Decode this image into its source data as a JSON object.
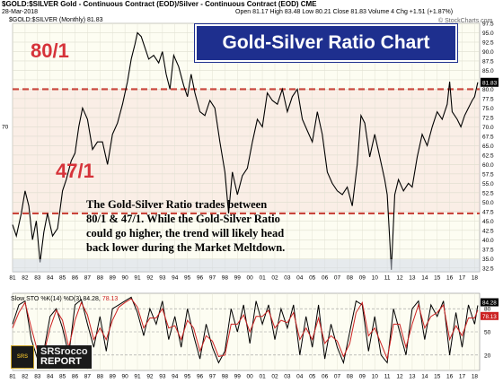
{
  "header": {
    "symbol_line": "$GOLD:$SILVER Gold - Continuous Contract (EOD)/Silver - Continuous Contract (EOD) CME",
    "date": "28-Mar-2018",
    "stats": "Open 81.17 High 83.48 Low 80.21 Close 81.83 Volume 4 Chg +1.51 (+1.87%)",
    "watermark": "© StockCharts.com",
    "legend": "$GOLD:$SILVER (Monthly) 81.83",
    "sto_legend": "Slow STO %K(14) %D(3) 84.28,",
    "sto_legend_d": "78.13"
  },
  "title": "Gold-Silver Ratio Chart",
  "annotations": {
    "upper": "80/1",
    "lower": "47/1",
    "note_lines": [
      "The Gold-Silver Ratio trades between",
      "80/1 & 47/1.  While the Gold-Silver Ratio",
      "could go higher, the trend will likely head",
      "back lower during the Market Meltdown."
    ]
  },
  "logo": {
    "icon": "SRSrocco-icon",
    "line1": "SRSrocco",
    "line2": "REPORT",
    "badge": "SRS"
  },
  "colors": {
    "ratio_line": "#000000",
    "reference_line": "#c9453b",
    "band": "#f4d2d2",
    "sto_k": "#000000",
    "sto_d": "#cc2222",
    "title_bg": "#1e2f8e",
    "plot_bg": "#fdfdf2"
  },
  "chart_data": [
    {
      "type": "line",
      "series": [
        {
          "name": "$GOLD:$SILVER (Monthly)",
          "x": [
            1981.0,
            1981.3,
            1981.7,
            1982.0,
            1982.3,
            1982.6,
            1982.9,
            1983.2,
            1983.5,
            1983.8,
            1984.2,
            1984.6,
            1985.0,
            1985.3,
            1985.7,
            1986.0,
            1986.3,
            1986.6,
            1987.0,
            1987.4,
            1987.8,
            1988.2,
            1988.6,
            1989.0,
            1989.4,
            1989.8,
            1990.2,
            1990.5,
            1990.8,
            1991.0,
            1991.3,
            1991.6,
            1991.9,
            1992.3,
            1992.7,
            1993.0,
            1993.3,
            1993.6,
            1993.9,
            1994.3,
            1994.7,
            1995.0,
            1995.3,
            1995.6,
            1996.0,
            1996.4,
            1996.8,
            1997.2,
            1997.6,
            1998.0,
            1998.3,
            1998.6,
            1999.0,
            1999.4,
            1999.8,
            2000.2,
            2000.6,
            2001.0,
            2001.4,
            2001.8,
            2002.2,
            2002.6,
            2003.0,
            2003.4,
            2003.8,
            2004.2,
            2004.6,
            2005.0,
            2005.4,
            2005.8,
            2006.2,
            2006.6,
            2007.0,
            2007.4,
            2007.8,
            2008.2,
            2008.6,
            2008.9,
            2009.2,
            2009.6,
            2010.0,
            2010.4,
            2010.8,
            2011.0,
            2011.2,
            2011.33,
            2011.6,
            2011.9,
            2012.3,
            2012.7,
            2013.0,
            2013.4,
            2013.8,
            2014.2,
            2014.6,
            2015.0,
            2015.4,
            2015.8,
            2016.0,
            2016.2,
            2016.6,
            2016.9,
            2017.2,
            2017.5,
            2017.8,
            2018.0,
            2018.25
          ],
          "values": [
            44,
            41,
            47,
            53,
            49,
            40,
            45,
            34,
            42,
            47,
            41,
            43,
            53,
            56,
            61,
            63,
            70,
            75,
            72,
            64,
            66,
            66,
            60,
            68,
            71,
            76,
            82,
            88,
            92,
            95,
            94,
            91,
            88,
            89,
            87,
            90,
            84,
            80,
            89,
            86,
            81,
            78,
            84,
            79,
            74,
            73,
            77,
            75,
            66,
            58,
            47,
            58,
            52,
            57,
            59,
            66,
            72,
            70,
            79,
            77,
            76,
            80,
            74,
            78,
            80,
            72,
            69,
            66,
            74,
            68,
            58,
            55,
            53,
            52,
            54,
            49,
            60,
            73,
            71,
            62,
            68,
            62,
            56,
            52,
            40,
            32,
            52,
            56,
            53,
            55,
            54,
            62,
            68,
            65,
            70,
            74,
            72,
            76,
            82,
            74,
            72,
            70,
            73,
            75,
            77,
            78,
            81.83
          ]
        }
      ],
      "xlim": [
        1981,
        2018.4
      ],
      "ylim": [
        31.5,
        97.5
      ],
      "x_ticks": [
        "81",
        "82",
        "83",
        "84",
        "85",
        "86",
        "87",
        "88",
        "89",
        "90",
        "91",
        "92",
        "93",
        "94",
        "95",
        "96",
        "97",
        "98",
        "99",
        "00",
        "01",
        "02",
        "03",
        "04",
        "05",
        "06",
        "07",
        "08",
        "09",
        "10",
        "11",
        "12",
        "13",
        "14",
        "15",
        "16",
        "17",
        "18"
      ],
      "y_ticks": [
        "32.5",
        "35.0",
        "37.5",
        "40.0",
        "42.5",
        "45.0",
        "47.5",
        "50.0",
        "52.5",
        "55.0",
        "57.5",
        "60.0",
        "62.5",
        "65.0",
        "67.5",
        "70.0",
        "72.5",
        "75.0",
        "77.5",
        "80.0",
        "82.5",
        "85.0",
        "87.5",
        "90.0",
        "92.5",
        "95.0",
        "97.5"
      ],
      "left_tick": "70",
      "last_value_label": "81.83",
      "reference_lines": [
        80,
        47
      ],
      "grid": true
    },
    {
      "type": "line",
      "series": [
        {
          "name": "%K",
          "x": [
            1981.0,
            1981.5,
            1982.0,
            1982.5,
            1983.0,
            1983.5,
            1984.0,
            1984.5,
            1985.0,
            1985.5,
            1986.0,
            1986.5,
            1987.0,
            1987.5,
            1988.0,
            1988.5,
            1989.0,
            1989.5,
            1990.0,
            1990.5,
            1991.0,
            1991.5,
            1992.0,
            1992.5,
            1993.0,
            1993.5,
            1994.0,
            1994.5,
            1995.0,
            1995.5,
            1996.0,
            1996.5,
            1997.0,
            1997.5,
            1998.0,
            1998.5,
            1999.0,
            1999.5,
            2000.0,
            2000.5,
            2001.0,
            2001.5,
            2002.0,
            2002.5,
            2003.0,
            2003.5,
            2004.0,
            2004.5,
            2005.0,
            2005.5,
            2006.0,
            2006.5,
            2007.0,
            2007.5,
            2008.0,
            2008.5,
            2009.0,
            2009.5,
            2010.0,
            2010.5,
            2011.0,
            2011.5,
            2012.0,
            2012.5,
            2013.0,
            2013.5,
            2014.0,
            2014.5,
            2015.0,
            2015.5,
            2016.0,
            2016.5,
            2017.0,
            2017.5,
            2018.0,
            2018.25
          ],
          "values": [
            60,
            85,
            90,
            40,
            15,
            25,
            70,
            80,
            55,
            20,
            85,
            92,
            60,
            30,
            70,
            25,
            80,
            85,
            90,
            95,
            75,
            45,
            80,
            60,
            90,
            40,
            70,
            30,
            80,
            45,
            15,
            60,
            30,
            10,
            25,
            80,
            50,
            85,
            35,
            90,
            60,
            85,
            40,
            80,
            55,
            85,
            20,
            70,
            30,
            85,
            15,
            60,
            30,
            10,
            50,
            90,
            85,
            25,
            70,
            20,
            10,
            80,
            50,
            20,
            80,
            90,
            40,
            85,
            70,
            90,
            20,
            75,
            30,
            85,
            60,
            84.28
          ]
        },
        {
          "name": "%D",
          "x": [
            1981.0,
            1981.5,
            1982.0,
            1982.5,
            1983.0,
            1983.5,
            1984.0,
            1984.5,
            1985.0,
            1985.5,
            1986.0,
            1986.5,
            1987.0,
            1987.5,
            1988.0,
            1988.5,
            1989.0,
            1989.5,
            1990.0,
            1990.5,
            1991.0,
            1991.5,
            1992.0,
            1992.5,
            1993.0,
            1993.5,
            1994.0,
            1994.5,
            1995.0,
            1995.5,
            1996.0,
            1996.5,
            1997.0,
            1997.5,
            1998.0,
            1998.5,
            1999.0,
            1999.5,
            2000.0,
            2000.5,
            2001.0,
            2001.5,
            2002.0,
            2002.5,
            2003.0,
            2003.5,
            2004.0,
            2004.5,
            2005.0,
            2005.5,
            2006.0,
            2006.5,
            2007.0,
            2007.5,
            2008.0,
            2008.5,
            2009.0,
            2009.5,
            2010.0,
            2010.5,
            2011.0,
            2011.5,
            2012.0,
            2012.5,
            2013.0,
            2013.5,
            2014.0,
            2014.5,
            2015.0,
            2015.5,
            2016.0,
            2016.5,
            2017.0,
            2017.5,
            2018.0,
            2018.25
          ],
          "values": [
            55,
            75,
            88,
            55,
            25,
            22,
            55,
            78,
            65,
            30,
            65,
            88,
            72,
            40,
            55,
            40,
            65,
            82,
            88,
            93,
            82,
            55,
            68,
            68,
            80,
            55,
            58,
            40,
            65,
            55,
            25,
            45,
            38,
            18,
            20,
            60,
            60,
            72,
            50,
            70,
            70,
            78,
            55,
            65,
            62,
            75,
            40,
            55,
            40,
            68,
            35,
            45,
            38,
            18,
            35,
            75,
            88,
            45,
            55,
            35,
            15,
            60,
            60,
            30,
            60,
            85,
            55,
            70,
            75,
            85,
            40,
            58,
            45,
            68,
            68,
            78.13
          ]
        }
      ],
      "xlim": [
        1981,
        2018.4
      ],
      "ylim": [
        0,
        100
      ],
      "y_ticks": [
        "20",
        "50",
        "80"
      ],
      "x_ticks": [
        "81",
        "82",
        "83",
        "84",
        "85",
        "86",
        "87",
        "88",
        "89",
        "90",
        "91",
        "92",
        "93",
        "94",
        "95",
        "96",
        "97",
        "98",
        "99",
        "00",
        "01",
        "02",
        "03",
        "04",
        "05",
        "06",
        "07",
        "08",
        "09",
        "10",
        "11",
        "12",
        "13",
        "14",
        "15",
        "16",
        "17",
        "18"
      ],
      "last_labels": [
        "84.28",
        "78.13"
      ]
    }
  ]
}
